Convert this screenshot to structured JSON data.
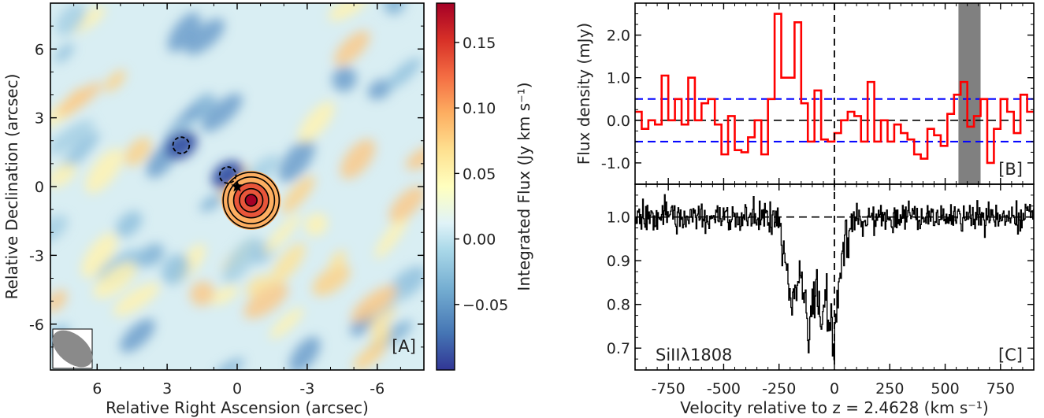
{
  "chart_data": [
    {
      "panel": "[A]",
      "type": "heatmap",
      "xlabel": "Relative Right Ascension (arcsec)",
      "ylabel": "Relative Declination (arcsec)",
      "xlim": [
        8,
        -8
      ],
      "ylim": [
        -8,
        8
      ],
      "x_ticks": [
        6,
        3,
        0,
        -3,
        -6
      ],
      "x_tick_labels": [
        "6",
        "3",
        "0",
        "-3",
        "-6"
      ],
      "y_ticks": [
        6,
        3,
        0,
        -3,
        -6
      ],
      "y_tick_labels": [
        "6",
        "3",
        "0",
        "-3",
        "-6"
      ],
      "colorbar": {
        "label": "Integrated Flux (Jy km s⁻¹)",
        "range": [
          -0.1,
          0.18
        ],
        "ticks": [
          0.15,
          0.1,
          0.05,
          0.0,
          -0.05
        ],
        "tick_labels": [
          "0.15",
          "0.10",
          "0.05",
          "0.00",
          "−0.05"
        ],
        "colormap": "RdYlBu_r"
      },
      "source": {
        "ra": -0.6,
        "dec": -0.6,
        "contour_radii_arcsec": [
          0.25,
          0.5,
          0.75,
          1.0,
          1.2
        ]
      },
      "negative_contours": [
        {
          "ra": 2.4,
          "dec": 1.8,
          "radius_arcsec": 0.35
        },
        {
          "ra": 0.4,
          "dec": 0.5,
          "radius_arcsec": 0.35
        }
      ],
      "star_marker": {
        "ra": 0.0,
        "dec": 0.0
      },
      "beam": {
        "major_arcsec": 2.0,
        "minor_arcsec": 1.2,
        "pa_deg": -50
      }
    },
    {
      "panel": "[B]",
      "type": "line",
      "style": "step",
      "ylabel": "Flux density (mJy)",
      "xlim": [
        -900,
        900
      ],
      "ylim": [
        -1.5,
        2.75
      ],
      "y_ticks": [
        2.0,
        1.0,
        0.0,
        -1.0
      ],
      "y_tick_labels": [
        "2.0",
        "1.0",
        "0.0",
        "-1.0"
      ],
      "hlines_blue": [
        0.5,
        -0.5
      ],
      "hline_black": 0.0,
      "masked_region": [
        560,
        660
      ],
      "series": [
        {
          "color": "#ff0000",
          "x": [
            -900,
            -870,
            -840,
            -810,
            -780,
            -750,
            -720,
            -690,
            -660,
            -630,
            -600,
            -570,
            -540,
            -510,
            -480,
            -450,
            -420,
            -390,
            -360,
            -330,
            -300,
            -270,
            -240,
            -210,
            -180,
            -150,
            -120,
            -90,
            -60,
            -30,
            0,
            30,
            60,
            90,
            120,
            150,
            180,
            210,
            240,
            270,
            300,
            330,
            360,
            390,
            420,
            450,
            480,
            510,
            540,
            570,
            600,
            630,
            660,
            690,
            720,
            750,
            780,
            810,
            840,
            870
          ],
          "values": [
            0.2,
            -0.2,
            0.0,
            -0.1,
            1.05,
            0.0,
            0.5,
            -0.1,
            1.0,
            0.0,
            0.4,
            0.5,
            -0.1,
            -0.8,
            0.1,
            -0.7,
            -0.75,
            -0.4,
            0.0,
            -0.8,
            0.5,
            2.5,
            1.0,
            1.0,
            2.3,
            0.4,
            -0.5,
            0.7,
            -0.45,
            -0.5,
            -0.3,
            0.0,
            0.2,
            0.1,
            -0.5,
            0.9,
            -0.5,
            0.0,
            -0.5,
            -0.1,
            -0.3,
            -0.45,
            -0.8,
            -0.9,
            -0.2,
            -0.35,
            -0.6,
            0.15,
            0.6,
            0.9,
            -0.15,
            0.1,
            0.5,
            -1.0,
            -0.2,
            0.5,
            0.2,
            -0.3,
            0.6,
            0.2
          ]
        }
      ]
    },
    {
      "panel": "[C]",
      "type": "line",
      "style": "step",
      "annotation": "SiIIλ1808",
      "xlabel": "Velocity relative to z = 2.4628 (km s⁻¹)",
      "xlim": [
        -900,
        900
      ],
      "ylim": [
        0.65,
        1.075
      ],
      "x_ticks": [
        -750,
        -500,
        -250,
        0,
        250,
        500,
        750
      ],
      "x_tick_labels": [
        "-750",
        "-500",
        "-250",
        "0",
        "250",
        "500",
        "750"
      ],
      "y_ticks": [
        1.0,
        0.9,
        0.8,
        0.7
      ],
      "y_tick_labels": [
        "1.0",
        "0.9",
        "0.8",
        "0.7"
      ],
      "hline_black": 1.0,
      "absorption_profile": {
        "x": [
          -900,
          -260,
          -240,
          -220,
          -200,
          -180,
          -160,
          -140,
          -120,
          -100,
          -80,
          -60,
          -40,
          -20,
          -5,
          10,
          40,
          100,
          900
        ],
        "values": [
          1.0,
          1.0,
          0.95,
          0.88,
          0.85,
          0.8,
          0.88,
          0.84,
          0.72,
          0.8,
          0.85,
          0.75,
          0.82,
          0.77,
          0.72,
          0.8,
          0.95,
          1.0,
          1.0
        ]
      },
      "noise_rms": 0.018
    }
  ]
}
